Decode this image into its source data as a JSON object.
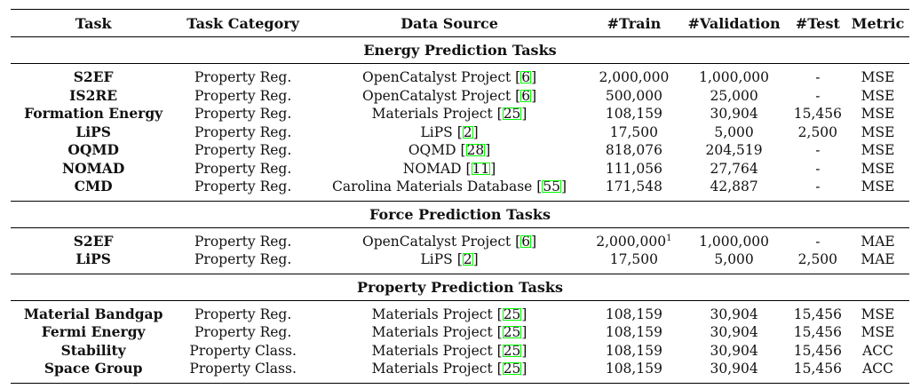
{
  "columns": [
    "Task",
    "Task Category",
    "Data Source",
    "#Train",
    "#Validation",
    "#Test",
    "Metric"
  ],
  "sections": [
    {
      "title": "Energy Prediction Tasks",
      "rows": [
        {
          "task": "S2EF",
          "category": "Property Reg.",
          "source": "OpenCatalyst Project",
          "cite": "6",
          "train": "2,000,000",
          "train_sup": "",
          "val": "1,000,000",
          "test": "-",
          "metric": "MSE"
        },
        {
          "task": "IS2RE",
          "category": "Property Reg.",
          "source": "OpenCatalyst Project",
          "cite": "6",
          "train": "500,000",
          "train_sup": "",
          "val": "25,000",
          "test": "-",
          "metric": "MSE"
        },
        {
          "task": "Formation Energy",
          "category": "Property Reg.",
          "source": "Materials Project",
          "cite": "25",
          "train": "108,159",
          "train_sup": "",
          "val": "30,904",
          "test": "15,456",
          "metric": "MSE"
        },
        {
          "task": "LiPS",
          "category": "Property Reg.",
          "source": "LiPS",
          "cite": "2",
          "train": "17,500",
          "train_sup": "",
          "val": "5,000",
          "test": "2,500",
          "metric": "MSE"
        },
        {
          "task": "OQMD",
          "category": "Property Reg.",
          "source": "OQMD",
          "cite": "28",
          "train": "818,076",
          "train_sup": "",
          "val": "204,519",
          "test": "-",
          "metric": "MSE"
        },
        {
          "task": "NOMAD",
          "category": "Property Reg.",
          "source": "NOMAD",
          "cite": "11",
          "train": "111,056",
          "train_sup": "",
          "val": "27,764",
          "test": "-",
          "metric": "MSE"
        },
        {
          "task": "CMD",
          "category": "Property Reg.",
          "source": "Carolina Materials Database",
          "cite": "55",
          "train": "171,548",
          "train_sup": "",
          "val": "42,887",
          "test": "-",
          "metric": "MSE"
        }
      ]
    },
    {
      "title": "Force Prediction Tasks",
      "rows": [
        {
          "task": "S2EF",
          "category": "Property Reg.",
          "source": "OpenCatalyst Project",
          "cite": "6",
          "train": "2,000,000",
          "train_sup": "1",
          "val": "1,000,000",
          "test": "-",
          "metric": "MAE"
        },
        {
          "task": "LiPS",
          "category": "Property Reg.",
          "source": "LiPS",
          "cite": "2",
          "train": "17,500",
          "train_sup": "",
          "val": "5,000",
          "test": "2,500",
          "metric": "MAE"
        }
      ]
    },
    {
      "title": "Property Prediction Tasks",
      "rows": [
        {
          "task": "Material Bandgap",
          "category": "Property Reg.",
          "source": "Materials Project",
          "cite": "25",
          "train": "108,159",
          "train_sup": "",
          "val": "30,904",
          "test": "15,456",
          "metric": "MSE"
        },
        {
          "task": "Fermi Energy",
          "category": "Property Reg.",
          "source": "Materials Project",
          "cite": "25",
          "train": "108,159",
          "train_sup": "",
          "val": "30,904",
          "test": "15,456",
          "metric": "MSE"
        },
        {
          "task": "Stability",
          "category": "Property Class.",
          "source": "Materials Project",
          "cite": "25",
          "train": "108,159",
          "train_sup": "",
          "val": "30,904",
          "test": "15,456",
          "metric": "ACC"
        },
        {
          "task": "Space Group",
          "category": "Property Class.",
          "source": "Materials Project",
          "cite": "25",
          "train": "108,159",
          "train_sup": "",
          "val": "30,904",
          "test": "15,456",
          "metric": "ACC"
        }
      ]
    }
  ],
  "colors": {
    "citation_box": "#00ff00",
    "rule": "#000000"
  }
}
